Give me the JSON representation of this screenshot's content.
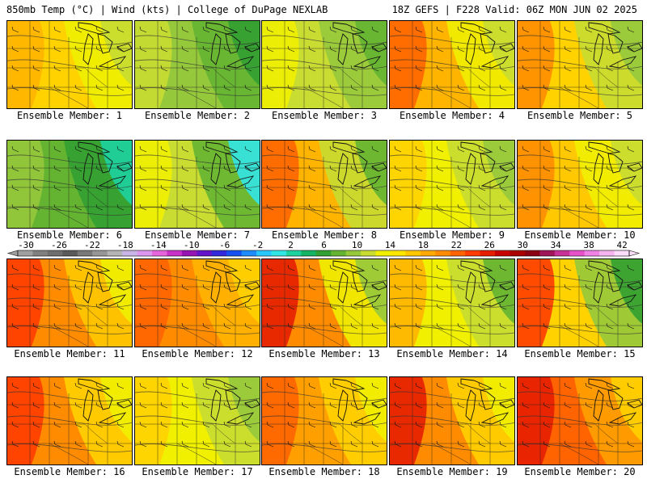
{
  "header": {
    "left": "850mb Temp (°C) | Wind (kts) | College of DuPage NEXLAB",
    "right": "18Z GEFS | F228 Valid: 06Z MON JUN 02 2025"
  },
  "colorbar": {
    "ticks": [
      "-30",
      "-26",
      "-22",
      "-18",
      "-14",
      "-10",
      "-6",
      "-2",
      "2",
      "6",
      "10",
      "14",
      "18",
      "22",
      "26",
      "30",
      "34",
      "38",
      "42"
    ],
    "colors": [
      "#a0a0a0",
      "#808080",
      "#6e6e6e",
      "#5a5a5a",
      "#787878",
      "#969696",
      "#b4b4b4",
      "#c8b4e6",
      "#dc96f0",
      "#e664dc",
      "#c832c8",
      "#9614b4",
      "#6414c8",
      "#3228dc",
      "#1450f0",
      "#1e8cff",
      "#28c8ff",
      "#32e6e6",
      "#1ed2a0",
      "#14b464",
      "#32a032",
      "#64b432",
      "#96c83c",
      "#c8dc32",
      "#f0f000",
      "#ffe600",
      "#ffc800",
      "#ffaa00",
      "#ff8c00",
      "#ff6400",
      "#ff3c00",
      "#e61e00",
      "#c80000",
      "#aa0000",
      "#8c0014",
      "#a0145a",
      "#c83296",
      "#e650c8",
      "#f082e6",
      "#f5b4f0",
      "#fadcfa"
    ]
  },
  "panels": [
    {
      "label": "Ensemble Member: 1",
      "colors": [
        "#ffb400",
        "#ffd200",
        "#f0f000",
        "#c8dc32"
      ]
    },
    {
      "label": "Ensemble Member: 2",
      "colors": [
        "#c8dc32",
        "#96c83c",
        "#64b432",
        "#32a032"
      ]
    },
    {
      "label": "Ensemble Member: 3",
      "colors": [
        "#f0f000",
        "#c8dc32",
        "#96c83c",
        "#64b432"
      ]
    },
    {
      "label": "Ensemble Member: 4",
      "colors": [
        "#ff6400",
        "#ffb400",
        "#f0f000",
        "#c8dc32"
      ]
    },
    {
      "label": "Ensemble Member: 5",
      "colors": [
        "#ff8c00",
        "#ffd200",
        "#c8dc32",
        "#96c83c"
      ]
    },
    {
      "label": "Ensemble Member: 6",
      "colors": [
        "#96c83c",
        "#64b432",
        "#32a032",
        "#1ed2a0"
      ]
    },
    {
      "label": "Ensemble Member: 7",
      "colors": [
        "#f0f000",
        "#c8dc32",
        "#64b432",
        "#32e6e6"
      ]
    },
    {
      "label": "Ensemble Member: 8",
      "colors": [
        "#ff6400",
        "#ffb400",
        "#c8dc32",
        "#64b432"
      ]
    },
    {
      "label": "Ensemble Member: 9",
      "colors": [
        "#ffd200",
        "#f0f000",
        "#c8dc32",
        "#96c83c"
      ]
    },
    {
      "label": "Ensemble Member: 10",
      "colors": [
        "#ff8c00",
        "#ffc800",
        "#f0f000",
        "#c8dc32"
      ]
    },
    {
      "label": "Ensemble Member: 11",
      "colors": [
        "#ff3c00",
        "#ff8c00",
        "#ffc800",
        "#f0f000"
      ]
    },
    {
      "label": "Ensemble Member: 12",
      "colors": [
        "#ff6400",
        "#ff8c00",
        "#ffb400",
        "#ffd200"
      ]
    },
    {
      "label": "Ensemble Member: 13",
      "colors": [
        "#e61e00",
        "#ff8c00",
        "#f0f000",
        "#96c83c"
      ]
    },
    {
      "label": "Ensemble Member: 14",
      "colors": [
        "#ffb400",
        "#f0f000",
        "#c8dc32",
        "#64b432"
      ]
    },
    {
      "label": "Ensemble Member: 15",
      "colors": [
        "#ff3c00",
        "#ffd200",
        "#96c83c",
        "#32a032"
      ]
    },
    {
      "label": "Ensemble Member: 16",
      "colors": [
        "#ff3c00",
        "#ff8c00",
        "#ffd200",
        "#f0f000"
      ]
    },
    {
      "label": "Ensemble Member: 17",
      "colors": [
        "#ffd200",
        "#f0f000",
        "#c8dc32",
        "#96c83c"
      ]
    },
    {
      "label": "Ensemble Member: 18",
      "colors": [
        "#ff6400",
        "#ffa000",
        "#ffd200",
        "#f0f000"
      ]
    },
    {
      "label": "Ensemble Member: 19",
      "colors": [
        "#e61e00",
        "#ff8c00",
        "#ffd200",
        "#f0f000"
      ]
    },
    {
      "label": "Ensemble Member: 20",
      "colors": [
        "#e61e00",
        "#ff6400",
        "#ffa000",
        "#ffd200"
      ]
    }
  ]
}
